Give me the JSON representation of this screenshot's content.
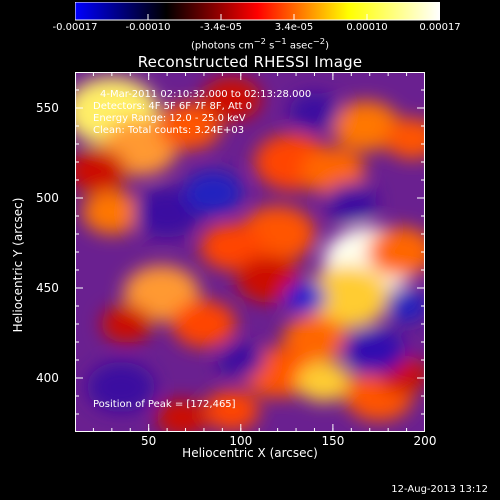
{
  "title": "Reconstructed RHESSI Image",
  "colorbar": {
    "ticks": [
      "-0.00017",
      "-0.00010",
      "-3.4e-05",
      "3.4e-05",
      "0.00010",
      "0.00017"
    ],
    "units_html": "(photons cm<sup>&minus;2</sup> s<sup>&minus;1</sup> asec<sup>&minus;2</sup>)",
    "colors": [
      "#0000ff",
      "#000000",
      "#ff0000",
      "#ffff00",
      "#ffffff"
    ]
  },
  "xaxis": {
    "label": "Heliocentric X (arcsec)",
    "ticks": [
      "50",
      "100",
      "150",
      "200"
    ]
  },
  "yaxis": {
    "label": "Heliocentric Y (arcsec)",
    "ticks": [
      "400",
      "450",
      "500",
      "550"
    ]
  },
  "annotations": {
    "time_range": "4-Mar-2011 02:10:32.000 to 02:13:28.000",
    "detectors": "Detectors: 4F 5F 6F 7F 8F, Att 0",
    "energy": "Energy Range: 12.0 - 25.0 keV",
    "clean": "Clean: Total counts: 3.24E+03",
    "peak": "Position of Peak = [172,465]"
  },
  "footer_date": "12-Aug-2013 13:12",
  "map": {
    "x_range": [
      10,
      200
    ],
    "y_range": [
      370,
      570
    ],
    "background": "#6a2090",
    "blobs": [
      {
        "x": 170,
        "y": 465,
        "r": 22,
        "c": "#ffffee"
      },
      {
        "x": 158,
        "y": 445,
        "r": 20,
        "c": "#ffcc33"
      },
      {
        "x": 187,
        "y": 470,
        "r": 16,
        "c": "#ff6600"
      },
      {
        "x": 30,
        "y": 548,
        "r": 22,
        "c": "#ffee66"
      },
      {
        "x": 45,
        "y": 528,
        "r": 18,
        "c": "#ff9933"
      },
      {
        "x": 22,
        "y": 515,
        "r": 14,
        "c": "#cc1100"
      },
      {
        "x": 72,
        "y": 540,
        "r": 15,
        "c": "#ff5500"
      },
      {
        "x": 95,
        "y": 555,
        "r": 14,
        "c": "#cc1100"
      },
      {
        "x": 128,
        "y": 520,
        "r": 18,
        "c": "#ff4400"
      },
      {
        "x": 150,
        "y": 515,
        "r": 15,
        "c": "#ff6600"
      },
      {
        "x": 168,
        "y": 540,
        "r": 16,
        "c": "#ff7700"
      },
      {
        "x": 193,
        "y": 533,
        "r": 13,
        "c": "#ff5500"
      },
      {
        "x": 120,
        "y": 480,
        "r": 18,
        "c": "#ff5500"
      },
      {
        "x": 95,
        "y": 473,
        "r": 15,
        "c": "#ff4400"
      },
      {
        "x": 115,
        "y": 455,
        "r": 15,
        "c": "#cc1100"
      },
      {
        "x": 30,
        "y": 492,
        "r": 14,
        "c": "#ff7700"
      },
      {
        "x": 57,
        "y": 447,
        "r": 18,
        "c": "#ff9933"
      },
      {
        "x": 80,
        "y": 430,
        "r": 15,
        "c": "#ff4400"
      },
      {
        "x": 38,
        "y": 430,
        "r": 12,
        "c": "#cc1100"
      },
      {
        "x": 140,
        "y": 422,
        "r": 15,
        "c": "#ff6600"
      },
      {
        "x": 120,
        "y": 403,
        "r": 16,
        "c": "#ff5500"
      },
      {
        "x": 145,
        "y": 398,
        "r": 13,
        "c": "#ffcc33"
      },
      {
        "x": 175,
        "y": 390,
        "r": 16,
        "c": "#ff5500"
      },
      {
        "x": 188,
        "y": 402,
        "r": 12,
        "c": "#cc1100"
      },
      {
        "x": 95,
        "y": 382,
        "r": 13,
        "c": "#ff4400"
      },
      {
        "x": 68,
        "y": 378,
        "r": 12,
        "c": "#cc1100"
      },
      {
        "x": 60,
        "y": 492,
        "r": 16,
        "c": "#3a10a0"
      },
      {
        "x": 85,
        "y": 503,
        "r": 14,
        "c": "#2020c0"
      },
      {
        "x": 160,
        "y": 498,
        "r": 12,
        "c": "#3a10a0"
      },
      {
        "x": 172,
        "y": 415,
        "r": 15,
        "c": "#3010b0"
      },
      {
        "x": 190,
        "y": 440,
        "r": 10,
        "c": "#2020c0"
      },
      {
        "x": 35,
        "y": 395,
        "r": 16,
        "c": "#3a10a0"
      },
      {
        "x": 100,
        "y": 410,
        "r": 11,
        "c": "#3a10a0"
      },
      {
        "x": 135,
        "y": 445,
        "r": 10,
        "c": "#1a1ad0"
      },
      {
        "x": 140,
        "y": 548,
        "r": 12,
        "c": "#3a10a0"
      }
    ]
  }
}
